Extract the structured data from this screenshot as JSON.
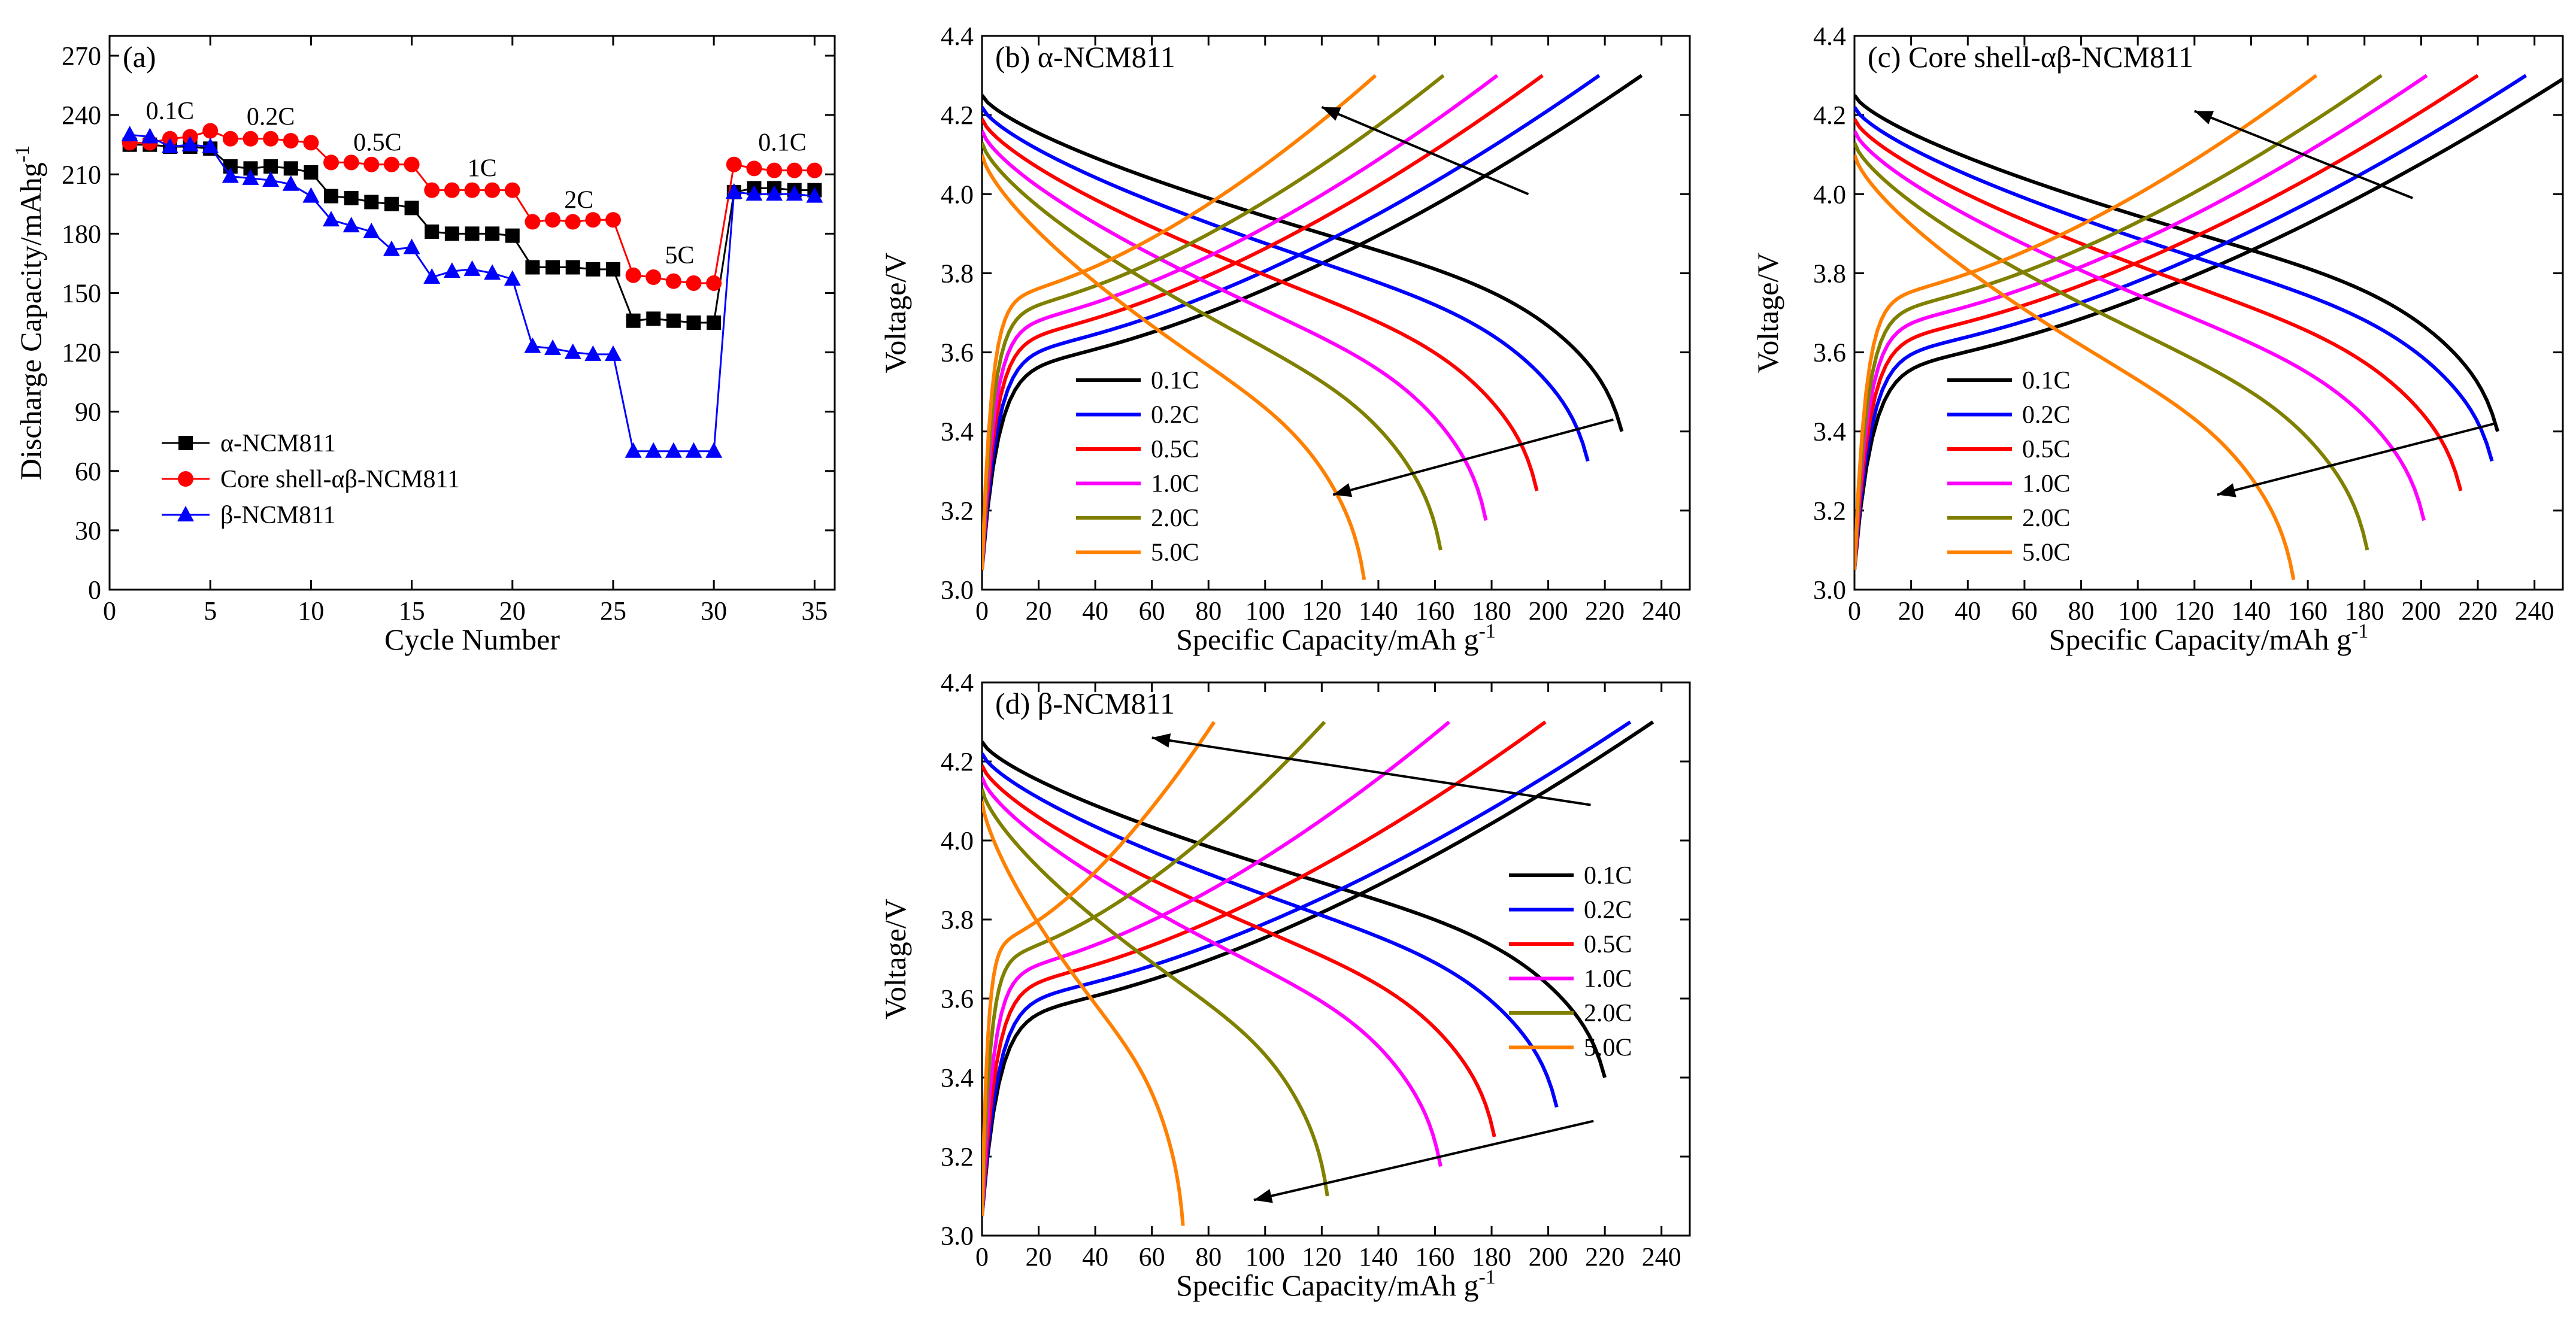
{
  "chart_data": [
    {
      "id": "a",
      "type": "scatter",
      "panel_label": "(a)",
      "xlabel": "Cycle Number",
      "ylabel": "Discharge Capacity/mAhg",
      "ylabel_sup": "-1",
      "xlim": [
        0,
        36
      ],
      "ylim": [
        0,
        280
      ],
      "xticks": [
        0,
        5,
        10,
        15,
        20,
        25,
        30,
        35
      ],
      "yticks": [
        0,
        30,
        60,
        90,
        120,
        150,
        180,
        210,
        240,
        270
      ],
      "rate_labels": [
        {
          "text": "0.1C",
          "x": 3,
          "y": 238
        },
        {
          "text": "0.2C",
          "x": 8,
          "y": 235
        },
        {
          "text": "0.5C",
          "x": 13.3,
          "y": 222
        },
        {
          "text": "1C",
          "x": 18.5,
          "y": 209
        },
        {
          "text": "2C",
          "x": 23.3,
          "y": 193
        },
        {
          "text": "5C",
          "x": 28.3,
          "y": 165
        },
        {
          "text": "0.1C",
          "x": 33.4,
          "y": 222
        }
      ],
      "series": [
        {
          "name": "α-NCM811",
          "color": "#000000",
          "marker": "square",
          "x": [
            1,
            2,
            3,
            4,
            5,
            6,
            7,
            8,
            9,
            10,
            11,
            12,
            13,
            14,
            15,
            16,
            17,
            18,
            19,
            20,
            21,
            22,
            23,
            24,
            25,
            26,
            27,
            28,
            29,
            30,
            31,
            32,
            33,
            34,
            35
          ],
          "y": [
            225,
            225,
            224,
            224,
            223,
            214,
            213,
            214,
            213,
            211,
            199,
            198,
            196,
            195,
            193,
            181,
            180,
            180,
            180,
            179,
            163,
            163,
            163,
            162,
            162,
            136,
            137,
            136,
            135,
            135,
            201,
            203,
            203,
            202,
            202
          ]
        },
        {
          "name": "Core shell-αβ-NCM811",
          "color": "#ff0000",
          "marker": "circle",
          "x": [
            1,
            2,
            3,
            4,
            5,
            6,
            7,
            8,
            9,
            10,
            11,
            12,
            13,
            14,
            15,
            16,
            17,
            18,
            19,
            20,
            21,
            22,
            23,
            24,
            25,
            26,
            27,
            28,
            29,
            30,
            31,
            32,
            33,
            34,
            35
          ],
          "y": [
            226,
            226,
            228,
            229,
            232,
            228,
            228,
            228,
            227,
            226,
            216,
            216,
            215,
            215,
            215,
            202,
            202,
            202,
            202,
            202,
            186,
            187,
            186,
            187,
            187,
            159,
            158,
            156,
            155,
            155,
            215,
            213,
            212,
            212,
            212
          ]
        },
        {
          "name": "β-NCM811",
          "color": "#0000ff",
          "marker": "triangle",
          "x": [
            1,
            2,
            3,
            4,
            5,
            6,
            7,
            8,
            9,
            10,
            11,
            12,
            13,
            14,
            15,
            16,
            17,
            18,
            19,
            20,
            21,
            22,
            23,
            24,
            25,
            26,
            27,
            28,
            29,
            30,
            31,
            32,
            33,
            34,
            35
          ],
          "y": [
            230,
            229,
            224,
            225,
            224,
            209,
            208,
            207,
            205,
            199,
            187,
            184,
            181,
            172,
            173,
            158,
            161,
            162,
            160,
            157,
            123,
            122,
            120,
            119,
            119,
            70,
            70,
            70,
            70,
            70,
            201,
            200,
            200,
            200,
            199
          ]
        }
      ]
    },
    {
      "id": "b",
      "type": "line",
      "panel_label": "(b) α-NCM811",
      "xlabel": "Specific Capacity/mAh g",
      "xlabel_sup": "-1",
      "ylabel": "Voltage/V",
      "xlim": [
        0,
        250
      ],
      "ylim": [
        3.0,
        4.4
      ],
      "xticks": [
        0,
        20,
        40,
        60,
        80,
        100,
        120,
        140,
        160,
        180,
        200,
        220,
        240
      ],
      "yticks": [
        3.0,
        3.2,
        3.4,
        3.6,
        3.8,
        4.0,
        4.2,
        4.4
      ],
      "series": [
        {
          "name": "0.1C",
          "color": "#000000",
          "charge_cap": 233,
          "discharge_cap": 226
        },
        {
          "name": "0.2C",
          "color": "#0000ff",
          "charge_cap": 218,
          "discharge_cap": 214
        },
        {
          "name": "0.5C",
          "color": "#ff0000",
          "charge_cap": 198,
          "discharge_cap": 196
        },
        {
          "name": "1.0C",
          "color": "#ff00ff",
          "charge_cap": 182,
          "discharge_cap": 178
        },
        {
          "name": "2.0C",
          "color": "#808000",
          "charge_cap": 163,
          "discharge_cap": 162
        },
        {
          "name": "5.0C",
          "color": "#ff8000",
          "charge_cap": 139,
          "discharge_cap": 135
        }
      ]
    },
    {
      "id": "c",
      "type": "line",
      "panel_label": "(c) Core shell-αβ-NCM811",
      "xlabel": "Specific Capacity/mAh g",
      "xlabel_sup": "-1",
      "ylabel": "Voltage/V",
      "xlim": [
        0,
        250
      ],
      "ylim": [
        3.0,
        4.4
      ],
      "xticks": [
        0,
        20,
        40,
        60,
        80,
        100,
        120,
        140,
        160,
        180,
        200,
        220,
        240
      ],
      "yticks": [
        3.0,
        3.2,
        3.4,
        3.6,
        3.8,
        4.0,
        4.2,
        4.4
      ],
      "series": [
        {
          "name": "0.1C",
          "color": "#000000",
          "charge_cap": 252,
          "discharge_cap": 227
        },
        {
          "name": "0.2C",
          "color": "#0000ff",
          "charge_cap": 237,
          "discharge_cap": 225
        },
        {
          "name": "0.5C",
          "color": "#ff0000",
          "charge_cap": 220,
          "discharge_cap": 214
        },
        {
          "name": "1.0C",
          "color": "#ff00ff",
          "charge_cap": 202,
          "discharge_cap": 201
        },
        {
          "name": "2.0C",
          "color": "#808000",
          "charge_cap": 186,
          "discharge_cap": 181
        },
        {
          "name": "5.0C",
          "color": "#ff8000",
          "charge_cap": 163,
          "discharge_cap": 155
        }
      ]
    },
    {
      "id": "d",
      "type": "line",
      "panel_label": "(d) β-NCM811",
      "xlabel": "Specific Capacity/mAh g",
      "xlabel_sup": "-1",
      "ylabel": "Voltage/V",
      "xlim": [
        0,
        250
      ],
      "ylim": [
        3.0,
        4.4
      ],
      "xticks": [
        0,
        20,
        40,
        60,
        80,
        100,
        120,
        140,
        160,
        180,
        200,
        220,
        240
      ],
      "yticks": [
        3.0,
        3.2,
        3.4,
        3.6,
        3.8,
        4.0,
        4.2,
        4.4
      ],
      "series": [
        {
          "name": "0.1C",
          "color": "#000000",
          "charge_cap": 237,
          "discharge_cap": 220
        },
        {
          "name": "0.2C",
          "color": "#0000ff",
          "charge_cap": 229,
          "discharge_cap": 203
        },
        {
          "name": "0.5C",
          "color": "#ff0000",
          "charge_cap": 199,
          "discharge_cap": 181
        },
        {
          "name": "1.0C",
          "color": "#ff00ff",
          "charge_cap": 165,
          "discharge_cap": 162
        },
        {
          "name": "2.0C",
          "color": "#808000",
          "charge_cap": 121,
          "discharge_cap": 122
        },
        {
          "name": "5.0C",
          "color": "#ff8000",
          "charge_cap": 82,
          "discharge_cap": 71
        }
      ]
    }
  ]
}
